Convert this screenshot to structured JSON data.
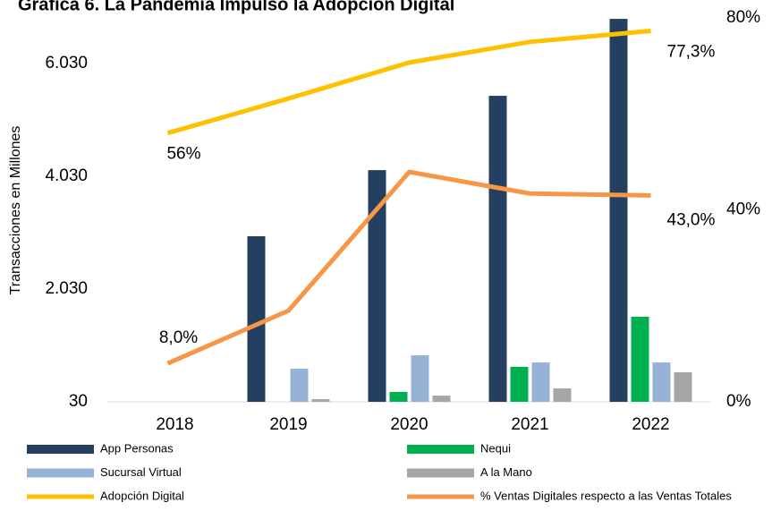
{
  "chart_data": {
    "type": "bar",
    "title": "Gráfica 6. La Pandemia Impulsó la Adopción Digital",
    "y_label": "Transacciones en Millones",
    "categories": [
      "2018",
      "2019",
      "2020",
      "2021",
      "2022"
    ],
    "series": [
      {
        "name": "App Personas",
        "color": "#243f60",
        "values": [
          null,
          2967,
          4140,
          5458,
          6823
        ]
      },
      {
        "name": "Nequi",
        "color": "#00b050",
        "values": [
          null,
          30,
          205,
          650,
          1540
        ]
      },
      {
        "name": "Sucursal Virtual",
        "color": "#95b3d7",
        "values": [
          null,
          617,
          855,
          728,
          728
        ]
      },
      {
        "name": "A la Mano",
        "color": "#a6a6a6",
        "values": [
          null,
          78,
          140,
          268,
          554
        ]
      },
      {
        "name": "Adopción Digital",
        "type": "line",
        "axis": "y2",
        "color": "#ffc000",
        "values": [
          56,
          63.2,
          70.7,
          75,
          77.3
        ],
        "value_labels": [
          "56%",
          null,
          null,
          null,
          "77,3%"
        ]
      },
      {
        "name": "% Ventas Digitales respecto a las Ventas Totales",
        "type": "line",
        "axis": "y2",
        "color": "#f79646",
        "values": [
          8.0,
          19,
          47.9,
          43.4,
          43.0
        ],
        "value_labels": [
          "8,0%",
          null,
          null,
          null,
          "43,0%"
        ]
      }
    ],
    "ylim": [
      30,
      6840
    ],
    "yticks": [
      30,
      {
        "value": 2030,
        "label": "2.030"
      },
      {
        "value": 4030,
        "label": "4.030"
      },
      {
        "value": 6030,
        "label": "6.030"
      }
    ],
    "y2lim": [
      0,
      80
    ],
    "y2ticks": [
      {
        "value": 0,
        "label": "0%"
      },
      {
        "value": 40,
        "label": "40%"
      },
      {
        "value": 80,
        "label": "80%"
      }
    ],
    "legend": "bottom"
  }
}
